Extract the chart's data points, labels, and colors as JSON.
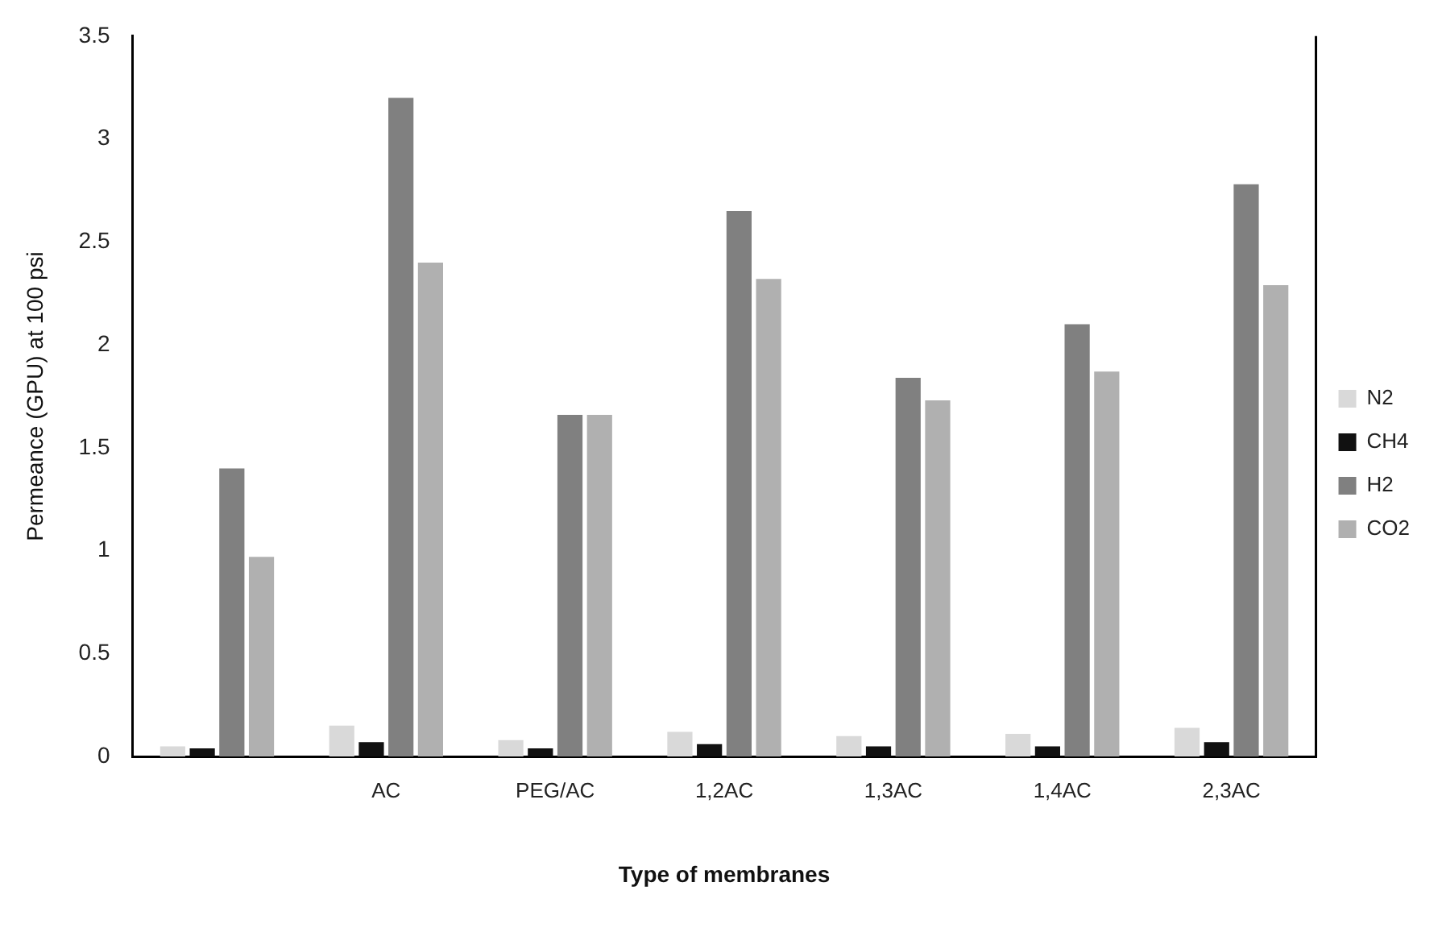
{
  "chart_data": {
    "type": "bar",
    "xlabel": "Type of membranes",
    "ylabel": "Permeance (GPU) at 100 psi",
    "categories": [
      null,
      "AC",
      "PEG/AC",
      "1,2AC",
      "1,3AC",
      "1,4AC",
      "2,3AC"
    ],
    "series": [
      {
        "name": "N2",
        "color": "#d9d9d9",
        "values": [
          0.05,
          0.15,
          0.08,
          0.12,
          0.1,
          0.11,
          0.14
        ]
      },
      {
        "name": "CH4",
        "color": "#111111",
        "values": [
          0.04,
          0.07,
          0.04,
          0.06,
          0.05,
          0.05,
          0.07
        ]
      },
      {
        "name": "H2",
        "color": "#808080",
        "values": [
          1.4,
          3.2,
          1.66,
          2.65,
          1.84,
          2.1,
          2.78
        ]
      },
      {
        "name": "CO2",
        "color": "#b0b0b0",
        "values": [
          0.97,
          2.4,
          1.66,
          2.32,
          1.73,
          1.87,
          2.29
        ]
      }
    ],
    "ylim": [
      0,
      3.5
    ],
    "yticks": [
      0,
      0.5,
      1,
      1.5,
      2,
      2.5,
      3,
      3.5
    ],
    "grid": false,
    "legend": "right"
  }
}
